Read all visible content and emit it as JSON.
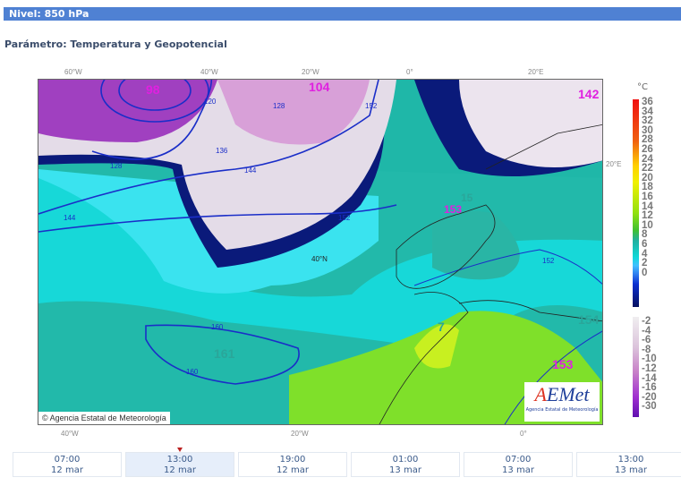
{
  "header": {
    "level": "Nivel: 850 hPa",
    "parameter": "Parámetro: Temperatura y Geopotencial"
  },
  "map": {
    "top_axis": [
      "60°W",
      "40°W",
      "20°W",
      "0°",
      "20°E"
    ],
    "bottom_axis": [
      "40°W",
      "20°W",
      "0°"
    ],
    "right_axis": "20°E",
    "lat_label": "40°N",
    "centers": [
      {
        "text": "98",
        "color": "#e020e0"
      },
      {
        "text": "104",
        "color": "#e020e0"
      },
      {
        "text": "142",
        "color": "#e020e0"
      },
      {
        "text": "153",
        "color": "#e020e0"
      },
      {
        "text": "15",
        "color": "#2aa69a"
      },
      {
        "text": "161",
        "color": "#2aa69a"
      },
      {
        "text": "154",
        "color": "#2aa69a"
      },
      {
        "text": "153",
        "color": "#e020e0"
      },
      {
        "text": "7",
        "color": "#2aa69a"
      }
    ],
    "contour_labels": [
      "120",
      "128",
      "136",
      "144",
      "152",
      "160",
      "128",
      "136",
      "144",
      "152",
      "160",
      "152"
    ],
    "copyright": "Agencia Estatal de Meteorología",
    "logo": "AEMet",
    "logo_subtitle": "Agencia Estatal de Meteorología"
  },
  "legend": {
    "unit": "°C",
    "positive": [
      "36",
      "34",
      "32",
      "30",
      "28",
      "26",
      "24",
      "22",
      "20",
      "18",
      "16",
      "14",
      "12",
      "10",
      "8",
      "6",
      "4",
      "2",
      "0"
    ],
    "negative": [
      "-2",
      "-4",
      "-6",
      "-8",
      "-10",
      "-12",
      "-14",
      "-16",
      "-20",
      "-30"
    ]
  },
  "timeline": {
    "selected_index": 1,
    "slots": [
      {
        "time": "07:00",
        "date": "12 mar"
      },
      {
        "time": "13:00",
        "date": "12 mar"
      },
      {
        "time": "19:00",
        "date": "12 mar"
      },
      {
        "time": "01:00",
        "date": "13 mar"
      },
      {
        "time": "07:00",
        "date": "13 mar"
      },
      {
        "time": "13:00",
        "date": "13 mar"
      }
    ]
  }
}
